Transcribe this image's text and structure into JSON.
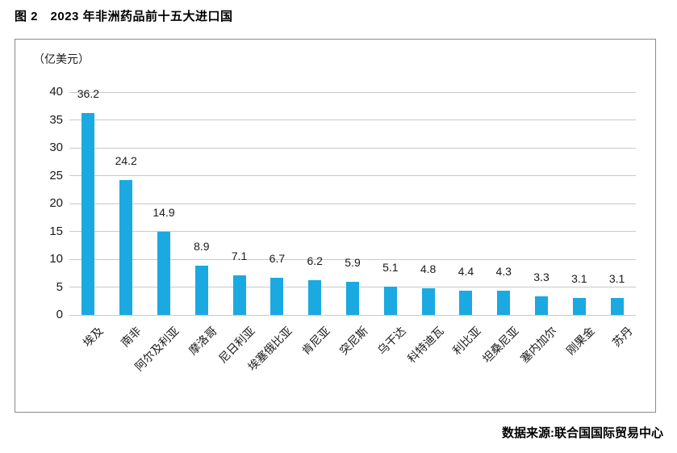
{
  "figure": {
    "title": "图 2　2023 年非洲药品前十五大进口国",
    "source": "数据来源:联合国国际贸易中心"
  },
  "chart_data": {
    "type": "bar",
    "title": "图 2　2023 年非洲药品前十五大进口国",
    "unit_label": "（亿美元）",
    "categories": [
      "埃及",
      "南非",
      "阿尔及利亚",
      "摩洛哥",
      "尼日利亚",
      "埃塞俄比亚",
      "肯尼亚",
      "突尼斯",
      "乌干达",
      "科特迪瓦",
      "利比亚",
      "坦桑尼亚",
      "塞内加尔",
      "刚果金",
      "苏丹"
    ],
    "values": [
      36.2,
      24.2,
      14.9,
      8.9,
      7.1,
      6.7,
      6.2,
      5.9,
      5.1,
      4.8,
      4.4,
      4.3,
      3.3,
      3.1,
      3.1
    ],
    "xlabel": "",
    "ylabel": "（亿美元）",
    "ylim": [
      0,
      40
    ],
    "yticks": [
      0,
      5,
      10,
      15,
      20,
      25,
      30,
      35,
      40
    ],
    "grid": true,
    "legend": false,
    "bar_color": "#1BA9E1",
    "gridline_color": "#c9c9c9",
    "value_labels_shown": true,
    "source": "数据来源:联合国国际贸易中心"
  }
}
